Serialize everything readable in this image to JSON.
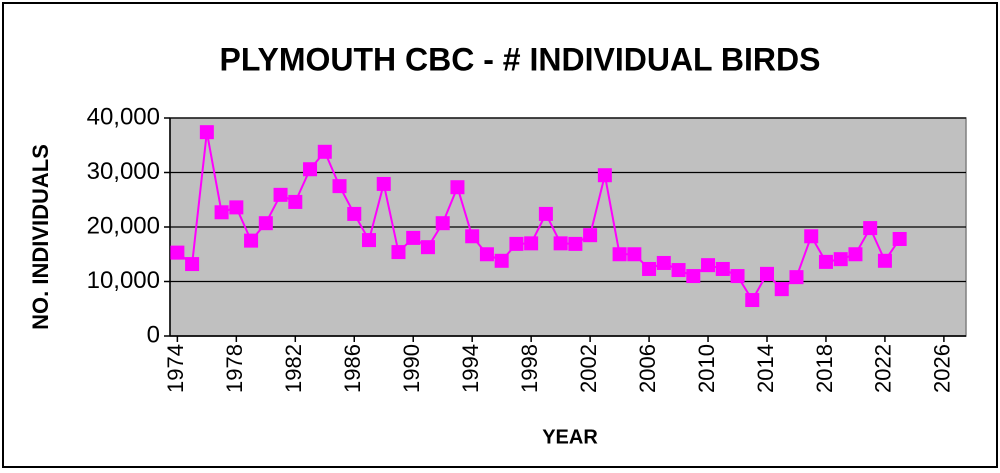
{
  "chart_data": {
    "type": "line",
    "title": "PLYMOUTH CBC - # INDIVIDUAL BIRDS",
    "x_label": "YEAR",
    "y_label": "NO. INDIVIDUALS",
    "x": [
      1974,
      1975,
      1976,
      1977,
      1978,
      1979,
      1980,
      1981,
      1982,
      1983,
      1984,
      1985,
      1986,
      1987,
      1988,
      1989,
      1990,
      1991,
      1992,
      1993,
      1994,
      1995,
      1996,
      1997,
      1998,
      1999,
      2000,
      2001,
      2002,
      2003,
      2004,
      2005,
      2006,
      2007,
      2008,
      2009,
      2010,
      2011,
      2012,
      2013,
      2014,
      2015,
      2016,
      2017,
      2018,
      2019,
      2020,
      2021,
      2022,
      2023
    ],
    "series": [
      {
        "name": "Individuals",
        "color": "#ff00ff",
        "values": [
          15300,
          13200,
          37400,
          22700,
          23600,
          17500,
          20700,
          25900,
          24600,
          30600,
          33800,
          27500,
          22400,
          17600,
          27900,
          15400,
          18000,
          16300,
          20700,
          27300,
          18300,
          15000,
          13800,
          16900,
          17000,
          22400,
          17000,
          16900,
          18500,
          29500,
          15000,
          15000,
          12300,
          13400,
          12100,
          11000,
          13000,
          12300,
          11000,
          6600,
          11400,
          8600,
          10800,
          18300,
          13600,
          14100,
          15000,
          19800,
          13800,
          17800
        ]
      }
    ],
    "xlim": [
      1973.5,
      2027.5
    ],
    "xticks": [
      1974,
      1978,
      1982,
      1986,
      1990,
      1994,
      1998,
      2002,
      2006,
      2010,
      2014,
      2018,
      2022,
      2026
    ],
    "ylim": [
      0,
      40000
    ],
    "yticks": [
      0,
      {
        "value": 10000,
        "label": "10,000"
      },
      {
        "value": 20000,
        "label": "20,000"
      },
      {
        "value": 30000,
        "label": "30,000"
      },
      {
        "value": 40000,
        "label": "40,000"
      }
    ],
    "grid": true,
    "plot_background": "#c0c0c0"
  }
}
